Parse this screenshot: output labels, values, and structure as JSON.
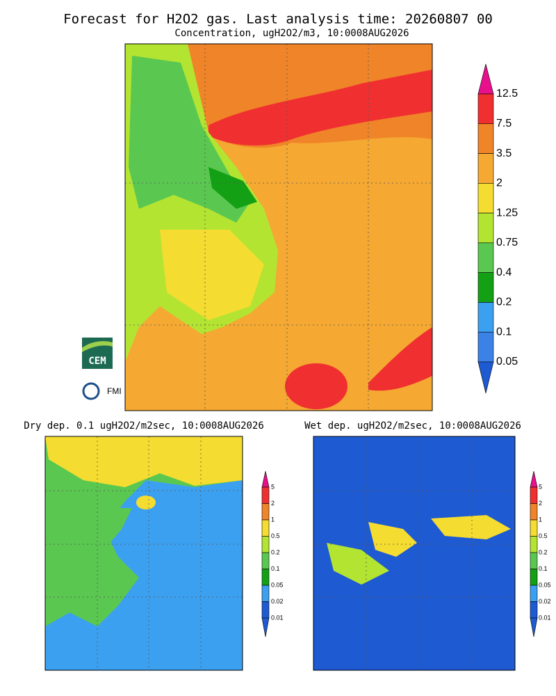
{
  "title": "Forecast for H2O2 gas. Last analysis time: 20260807 00",
  "main": {
    "subtitle": "Concentration, ugH2O2/m3, 10:0008AUG2026",
    "legend": {
      "labels": [
        "12.5",
        "7.5",
        "3.5",
        "2",
        "1.25",
        "0.75",
        "0.4",
        "0.2",
        "0.1",
        "0.05"
      ],
      "colors": [
        "#e8108c",
        "#f03030",
        "#f08428",
        "#f5a832",
        "#f5dc30",
        "#b4e432",
        "#5ac850",
        "#14a014",
        "#3ca0f0",
        "#3c82e6",
        "#1e5ad2"
      ]
    }
  },
  "dry": {
    "title": "Dry dep. 0.1 ugH2O2/m2sec, 10:0008AUG2026",
    "legend": {
      "labels": [
        "5",
        "2",
        "1",
        "0.5",
        "0.2",
        "0.1",
        "0.05",
        "0.02",
        "0.01"
      ],
      "colors": [
        "#e8108c",
        "#f03030",
        "#f08428",
        "#f5dc30",
        "#b4e432",
        "#5ac850",
        "#14a014",
        "#3ca0f0",
        "#1e5ad2",
        "#1e5ad2"
      ]
    }
  },
  "wet": {
    "title": "Wet dep. ugH2O2/m2sec, 10:0008AUG2026",
    "legend": {
      "labels": [
        "5",
        "2",
        "1",
        "0.5",
        "0.2",
        "0.1",
        "0.05",
        "0.02",
        "0.01"
      ],
      "colors": [
        "#e8108c",
        "#f03030",
        "#f08428",
        "#f5dc30",
        "#b4e432",
        "#5ac850",
        "#14a014",
        "#3ca0f0",
        "#1e5ad2",
        "#1e5ad2"
      ]
    }
  },
  "logos": [
    "CEM",
    "FMI"
  ]
}
